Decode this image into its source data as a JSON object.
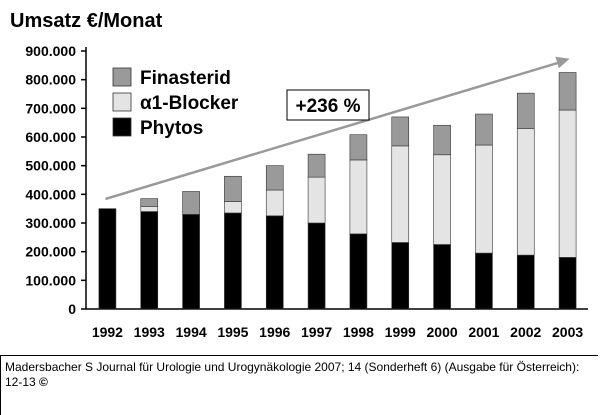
{
  "chart_data": {
    "type": "bar",
    "stacked": true,
    "title": "Umsatz €/Monat",
    "xlabel": "",
    "ylabel": "",
    "ylim": [
      0,
      900000
    ],
    "yticks": [
      "0",
      "100.000",
      "200.000",
      "300.000",
      "400.000",
      "500.000",
      "600.000",
      "700.000",
      "800.000",
      "900.000"
    ],
    "ytick_values": [
      0,
      100000,
      200000,
      300000,
      400000,
      500000,
      600000,
      700000,
      800000,
      900000
    ],
    "categories": [
      "1992",
      "1993",
      "1994",
      "1995",
      "1996",
      "1997",
      "1998",
      "1999",
      "2000",
      "2001",
      "2002",
      "2003"
    ],
    "series": [
      {
        "name": "Phytos",
        "color": "#000000",
        "values": [
          350000,
          340000,
          330000,
          335000,
          325000,
          300000,
          262000,
          232000,
          225000,
          195000,
          188000,
          180000
        ]
      },
      {
        "name": "α1-Blocker",
        "color": "#e4e4e4",
        "values": [
          0,
          18000,
          0,
          40000,
          90000,
          160000,
          258000,
          337000,
          313000,
          377000,
          442000,
          514000
        ]
      },
      {
        "name": "Finasterid",
        "color": "#9a9a9a",
        "values": [
          0,
          27000,
          80000,
          88000,
          85000,
          80000,
          88000,
          101000,
          103000,
          108000,
          123000,
          131000
        ]
      }
    ],
    "legend_order": [
      "Finasterid",
      "α1-Blocker",
      "Phytos"
    ],
    "legend_position": "top-left",
    "annotation": "+236 %",
    "trend_arrow": {
      "from_category": "1992",
      "from_value": 370000,
      "to_category": "2003",
      "to_value": 845000
    },
    "grid": false
  },
  "caption": {
    "text": "Madersbacher S Journal für Urologie und Urogynäkologie 2007; 14 (Sonderheft 6) (Ausgabe für Österreich): 12-13",
    "copyright": "©"
  },
  "colors": {
    "panel_background": "#ffffff",
    "arrow": "#999999",
    "bar_outline": "#333333"
  }
}
